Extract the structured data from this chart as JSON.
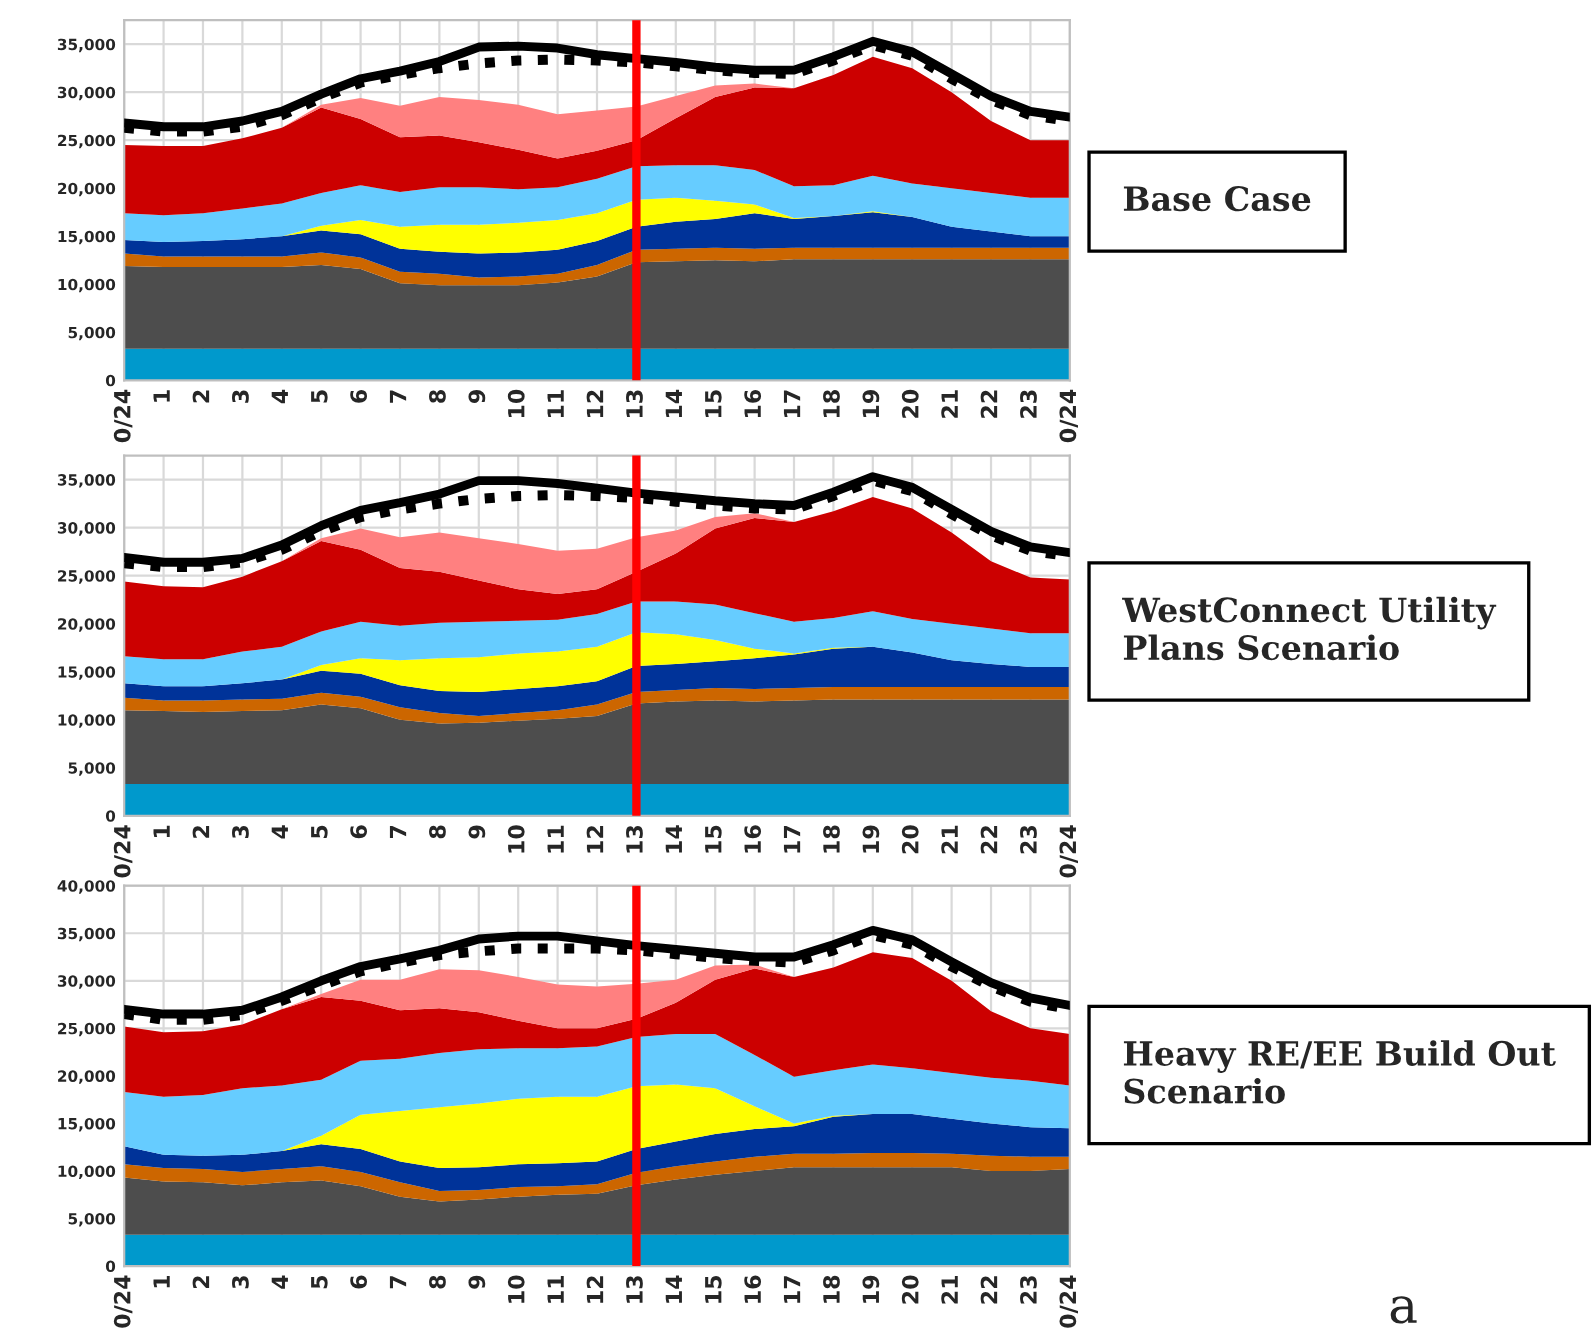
{
  "chart_data": [
    {
      "type": "area",
      "stacked": true,
      "grid": true,
      "legend": false,
      "categories": [
        "0/24",
        "1",
        "2",
        "3",
        "4",
        "5",
        "6",
        "7",
        "8",
        "9",
        "10",
        "11",
        "12",
        "13",
        "14",
        "15",
        "16",
        "17",
        "18",
        "19",
        "20",
        "21",
        "22",
        "23",
        "0/24"
      ],
      "ylim": [
        0,
        37500
      ],
      "yticks": [
        0,
        {
          "value": 5000,
          "label": "5,000"
        },
        {
          "value": 10000,
          "label": "10,000"
        },
        {
          "value": 15000,
          "label": "15,000"
        },
        {
          "value": 20000,
          "label": "20,000"
        },
        {
          "value": 25000,
          "label": "25,000"
        },
        {
          "value": 30000,
          "label": "30,000"
        },
        {
          "value": 35000,
          "label": "35,000"
        }
      ],
      "series": [
        {
          "color": "#0099cc",
          "values": [
            3300,
            3300,
            3300,
            3300,
            3300,
            3300,
            3300,
            3300,
            3300,
            3300,
            3300,
            3300,
            3300,
            3300,
            3300,
            3300,
            3300,
            3300,
            3300,
            3300,
            3300,
            3300,
            3300,
            3300,
            3300
          ]
        },
        {
          "color": "#4d4d4d",
          "values": [
            8600,
            8500,
            8500,
            8500,
            8500,
            8700,
            8300,
            6800,
            6600,
            6600,
            6600,
            6900,
            7500,
            9000,
            9100,
            9200,
            9100,
            9300,
            9300,
            9300,
            9300,
            9300,
            9300,
            9300,
            9300
          ]
        },
        {
          "color": "#cc6600",
          "values": [
            1300,
            1100,
            1100,
            1100,
            1100,
            1300,
            1200,
            1200,
            1200,
            800,
            900,
            900,
            1200,
            1300,
            1300,
            1300,
            1300,
            1200,
            1200,
            1200,
            1200,
            1200,
            1200,
            1200,
            1200
          ]
        },
        {
          "color": "#003399",
          "values": [
            1400,
            1500,
            1600,
            1800,
            2100,
            2300,
            2400,
            2400,
            2300,
            2500,
            2500,
            2500,
            2500,
            2400,
            2800,
            3000,
            3700,
            3000,
            3300,
            3700,
            3200,
            2200,
            1700,
            1200,
            1200
          ]
        },
        {
          "color": "#ffff00",
          "values": [
            0,
            0,
            0,
            0,
            0,
            500,
            1500,
            2300,
            2800,
            3000,
            3100,
            3100,
            2900,
            2800,
            2500,
            1900,
            900,
            100,
            0,
            100,
            0,
            0,
            0,
            0,
            0
          ]
        },
        {
          "color": "#66ccff",
          "values": [
            2800,
            2800,
            2900,
            3200,
            3400,
            3400,
            3600,
            3600,
            3900,
            3900,
            3500,
            3400,
            3600,
            3500,
            3400,
            3700,
            3600,
            3300,
            3200,
            3700,
            3500,
            4000,
            4000,
            4000,
            4000
          ]
        },
        {
          "color": "#cc0000",
          "values": [
            7100,
            7200,
            7000,
            7300,
            7900,
            8900,
            6900,
            5700,
            5400,
            4700,
            4100,
            3000,
            2900,
            2700,
            4900,
            7100,
            8600,
            10200,
            11500,
            12400,
            12000,
            10000,
            7500,
            6000,
            6000
          ]
        },
        {
          "color": "#ff8080",
          "values": [
            0,
            0,
            0,
            0,
            0,
            300,
            2200,
            3300,
            4000,
            4400,
            4700,
            4600,
            4200,
            3500,
            2300,
            1200,
            400,
            0,
            0,
            0,
            0,
            0,
            0,
            0,
            0
          ]
        },
        {
          "type": "line",
          "color": "#000000",
          "line_style": "solid",
          "values": [
            26800,
            26400,
            26400,
            27000,
            28000,
            29800,
            31400,
            32200,
            33200,
            34700,
            34800,
            34600,
            33900,
            33500,
            33100,
            32600,
            32300,
            32300,
            33700,
            35300,
            34200,
            31900,
            29600,
            28000,
            27400
          ]
        },
        {
          "type": "line",
          "color": "#000000",
          "line_style": "dotted",
          "values": [
            26300,
            25900,
            25900,
            26400,
            27600,
            29400,
            31000,
            31800,
            32500,
            33000,
            33300,
            33400,
            33300,
            33100,
            32700,
            32300,
            32000,
            31900,
            33300,
            34900,
            33800,
            31400,
            29200,
            27600,
            27000
          ]
        }
      ],
      "ref_lines": [
        {
          "axis": "x",
          "value": "13",
          "color": "#ff0000"
        }
      ],
      "annotations": [
        "Base Case"
      ]
    },
    {
      "type": "area",
      "stacked": true,
      "grid": true,
      "legend": false,
      "categories": [
        "0/24",
        "1",
        "2",
        "3",
        "4",
        "5",
        "6",
        "7",
        "8",
        "9",
        "10",
        "11",
        "12",
        "13",
        "14",
        "15",
        "16",
        "17",
        "18",
        "19",
        "20",
        "21",
        "22",
        "23",
        "0/24"
      ],
      "ylim": [
        0,
        37500
      ],
      "yticks": [
        0,
        {
          "value": 5000,
          "label": "5,000"
        },
        {
          "value": 10000,
          "label": "10,000"
        },
        {
          "value": 15000,
          "label": "15,000"
        },
        {
          "value": 20000,
          "label": "20,000"
        },
        {
          "value": 25000,
          "label": "25,000"
        },
        {
          "value": 30000,
          "label": "30,000"
        },
        {
          "value": 35000,
          "label": "35,000"
        }
      ],
      "series": [
        {
          "color": "#0099cc",
          "values": [
            3300,
            3300,
            3300,
            3300,
            3300,
            3300,
            3300,
            3300,
            3300,
            3300,
            3300,
            3300,
            3300,
            3300,
            3300,
            3300,
            3300,
            3300,
            3300,
            3300,
            3300,
            3300,
            3300,
            3300,
            3300
          ]
        },
        {
          "color": "#4d4d4d",
          "values": [
            7700,
            7600,
            7500,
            7600,
            7700,
            8300,
            7900,
            6700,
            6300,
            6400,
            6600,
            6800,
            7100,
            8400,
            8600,
            8700,
            8600,
            8700,
            8800,
            8800,
            8800,
            8800,
            8800,
            8800,
            8800
          ]
        },
        {
          "color": "#cc6600",
          "values": [
            1300,
            1100,
            1200,
            1200,
            1200,
            1200,
            1200,
            1300,
            1100,
            700,
            800,
            900,
            1200,
            1200,
            1200,
            1300,
            1300,
            1300,
            1300,
            1300,
            1300,
            1300,
            1300,
            1300,
            1300
          ]
        },
        {
          "color": "#003399",
          "values": [
            1500,
            1500,
            1500,
            1700,
            2000,
            2300,
            2400,
            2300,
            2300,
            2500,
            2500,
            2500,
            2400,
            2700,
            2700,
            2800,
            3200,
            3500,
            4000,
            4200,
            3600,
            2800,
            2400,
            2100,
            2100
          ]
        },
        {
          "color": "#ffff00",
          "values": [
            0,
            0,
            0,
            0,
            0,
            600,
            1600,
            2600,
            3400,
            3600,
            3700,
            3600,
            3600,
            3500,
            3100,
            2200,
            1000,
            100,
            100,
            0,
            0,
            0,
            0,
            0,
            0
          ]
        },
        {
          "color": "#66ccff",
          "values": [
            2800,
            2800,
            2800,
            3300,
            3400,
            3500,
            3800,
            3600,
            3700,
            3700,
            3400,
            3300,
            3400,
            3200,
            3400,
            3700,
            3700,
            3300,
            3100,
            3700,
            3500,
            3800,
            3700,
            3500,
            3500
          ]
        },
        {
          "color": "#cc0000",
          "values": [
            7800,
            7600,
            7500,
            7800,
            8900,
            9400,
            7500,
            6000,
            5300,
            4300,
            3300,
            2700,
            2600,
            3100,
            5000,
            7900,
            9900,
            10400,
            11100,
            11900,
            11500,
            9500,
            7000,
            5800,
            5600
          ]
        },
        {
          "color": "#ff8080",
          "values": [
            0,
            0,
            0,
            0,
            0,
            300,
            2200,
            3200,
            4100,
            4400,
            4700,
            4500,
            4200,
            3600,
            2400,
            1200,
            500,
            0,
            0,
            0,
            0,
            0,
            0,
            0,
            0
          ]
        },
        {
          "type": "line",
          "color": "#000000",
          "line_style": "solid",
          "values": [
            26900,
            26400,
            26400,
            26800,
            28200,
            30200,
            31800,
            32600,
            33500,
            34900,
            34900,
            34600,
            34100,
            33600,
            33200,
            32800,
            32500,
            32300,
            33700,
            35300,
            34200,
            31900,
            29600,
            28000,
            27400
          ]
        },
        {
          "type": "line",
          "color": "#000000",
          "line_style": "dotted",
          "values": [
            26300,
            25900,
            25900,
            26400,
            27700,
            29600,
            31100,
            31900,
            32500,
            33000,
            33300,
            33400,
            33300,
            33100,
            32700,
            32300,
            32000,
            31900,
            33300,
            34900,
            33800,
            31400,
            29200,
            27600,
            27000
          ]
        }
      ],
      "ref_lines": [
        {
          "axis": "x",
          "value": "13",
          "color": "#ff0000"
        }
      ],
      "annotations": [
        "WestConnect Utility Plans Scenario"
      ]
    },
    {
      "type": "area",
      "stacked": true,
      "grid": true,
      "legend": false,
      "categories": [
        "0/24",
        "1",
        "2",
        "3",
        "4",
        "5",
        "6",
        "7",
        "8",
        "9",
        "10",
        "11",
        "12",
        "13",
        "14",
        "15",
        "16",
        "17",
        "18",
        "19",
        "20",
        "21",
        "22",
        "23",
        "0/24"
      ],
      "ylim": [
        0,
        40000
      ],
      "yticks": [
        0,
        {
          "value": 5000,
          "label": "5,000"
        },
        {
          "value": 10000,
          "label": "10,000"
        },
        {
          "value": 15000,
          "label": "15,000"
        },
        {
          "value": 20000,
          "label": "20,000"
        },
        {
          "value": 25000,
          "label": "25,000"
        },
        {
          "value": 30000,
          "label": "30,000"
        },
        {
          "value": 35000,
          "label": "35,000"
        },
        {
          "value": 40000,
          "label": "40,000"
        }
      ],
      "series": [
        {
          "color": "#0099cc",
          "values": [
            3300,
            3300,
            3300,
            3300,
            3300,
            3300,
            3300,
            3300,
            3300,
            3300,
            3300,
            3300,
            3300,
            3300,
            3300,
            3300,
            3300,
            3300,
            3300,
            3300,
            3300,
            3300,
            3300,
            3300,
            3300
          ]
        },
        {
          "color": "#4d4d4d",
          "values": [
            6000,
            5600,
            5500,
            5200,
            5500,
            5700,
            5100,
            4000,
            3500,
            3700,
            4000,
            4200,
            4300,
            5200,
            5800,
            6300,
            6700,
            7100,
            7100,
            7100,
            7100,
            7100,
            6700,
            6700,
            6900
          ]
        },
        {
          "color": "#cc6600",
          "values": [
            1400,
            1400,
            1400,
            1400,
            1400,
            1500,
            1500,
            1500,
            1100,
            1000,
            1000,
            900,
            1000,
            1300,
            1400,
            1400,
            1500,
            1400,
            1400,
            1500,
            1500,
            1400,
            1600,
            1500,
            1300
          ]
        },
        {
          "color": "#003399",
          "values": [
            1900,
            1400,
            1400,
            1800,
            1900,
            2300,
            2400,
            2200,
            2400,
            2400,
            2400,
            2400,
            2400,
            2500,
            2600,
            2900,
            2900,
            2900,
            3900,
            4100,
            4100,
            3700,
            3400,
            3100,
            3000
          ]
        },
        {
          "color": "#ffff00",
          "values": [
            0,
            0,
            0,
            0,
            0,
            900,
            3600,
            5300,
            6400,
            6700,
            6900,
            7000,
            6800,
            6600,
            6000,
            4800,
            2400,
            300,
            100,
            0,
            0,
            0,
            0,
            0,
            0
          ]
        },
        {
          "color": "#66ccff",
          "values": [
            5700,
            6100,
            6400,
            7000,
            6900,
            5900,
            5700,
            5500,
            5700,
            5700,
            5300,
            5100,
            5300,
            5200,
            5300,
            5700,
            5400,
            4900,
            4800,
            5200,
            4800,
            4800,
            4800,
            4900,
            4500
          ]
        },
        {
          "color": "#cc0000",
          "values": [
            6900,
            6800,
            6700,
            6700,
            8000,
            8700,
            6300,
            5100,
            4700,
            3900,
            2900,
            2100,
            1900,
            1900,
            3300,
            5700,
            9100,
            10500,
            10800,
            11800,
            11600,
            9700,
            7000,
            5500,
            5400
          ]
        },
        {
          "color": "#ff8080",
          "values": [
            0,
            0,
            0,
            0,
            0,
            300,
            2200,
            3200,
            4100,
            4400,
            4600,
            4600,
            4400,
            3700,
            2400,
            1500,
            400,
            0,
            0,
            0,
            0,
            0,
            0,
            0,
            0
          ]
        },
        {
          "type": "line",
          "color": "#000000",
          "line_style": "solid",
          "values": [
            27000,
            26500,
            26500,
            26900,
            28300,
            30000,
            31500,
            32300,
            33200,
            34400,
            34700,
            34700,
            34200,
            33700,
            33300,
            32900,
            32500,
            32500,
            33800,
            35300,
            34300,
            32000,
            29800,
            28200,
            27400
          ]
        },
        {
          "type": "line",
          "color": "#000000",
          "line_style": "dotted",
          "values": [
            26500,
            25900,
            25900,
            26400,
            27900,
            29500,
            31000,
            31900,
            32700,
            33100,
            33400,
            33400,
            33400,
            33200,
            32800,
            32400,
            32100,
            31900,
            33200,
            34800,
            33800,
            31500,
            29400,
            27800,
            27000
          ]
        }
      ],
      "ref_lines": [
        {
          "axis": "x",
          "value": "13",
          "color": "#ff0000"
        }
      ],
      "annotations": [
        "Heavy RE/EE Build Out Scenario",
        "a"
      ]
    }
  ]
}
